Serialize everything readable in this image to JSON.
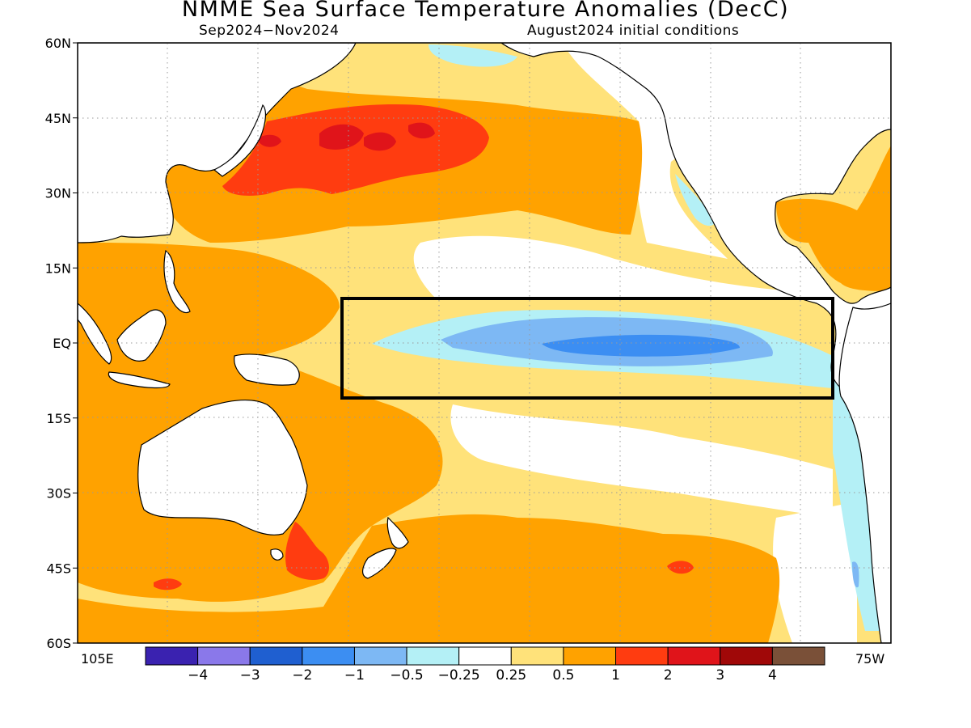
{
  "title": "NMME Sea Surface Temperature Anomalies (DecC)",
  "subtitle_left": "Sep2024−Nov2024",
  "subtitle_right": "August2024 initial conditions",
  "axes": {
    "lat_labels": [
      "60N",
      "45N",
      "30N",
      "15N",
      "EQ",
      "15S",
      "30S",
      "45S",
      "60S"
    ],
    "lat_values": [
      60,
      45,
      30,
      15,
      0,
      -15,
      -30,
      -45,
      -60
    ],
    "lon_left": "105E",
    "lon_right": "75W",
    "lon_range": [
      105,
      285
    ],
    "lat_range": [
      -60,
      60
    ],
    "grid": "dotted"
  },
  "colors": {
    "land": "#ffffff",
    "ocean_neutral": "#ffffff",
    "coastline": "#000000"
  },
  "colorbar": {
    "colors": [
      "#3a22b0",
      "#8a78ea",
      "#1f5fd0",
      "#3c8ef2",
      "#7db8f4",
      "#b4f0f6",
      "#ffffff",
      "#ffe27a",
      "#ffa200",
      "#ff3c10",
      "#e0141a",
      "#a00808",
      "#7a5038"
    ],
    "tick_labels": [
      "−4",
      "−3",
      "−2",
      "−1",
      "−0.5",
      "−0.25",
      "0.25",
      "0.5",
      "1",
      "2",
      "3",
      "4"
    ]
  },
  "nino_box": {
    "lon_range": [
      160,
      270
    ],
    "lat_range": [
      -11,
      9
    ]
  },
  "regions": [
    {
      "name": "south-pacific-warm",
      "color": "#ffa200"
    },
    {
      "name": "western-pacific-warm",
      "color": "#ffa200"
    },
    {
      "name": "north-pacific-warm",
      "color": "#ffa200"
    },
    {
      "name": "north-pacific-hot",
      "color": "#ff3c10"
    },
    {
      "name": "equatorial-cool",
      "color": "#b4f0f6"
    },
    {
      "name": "equatorial-cold",
      "color": "#7db8f4"
    },
    {
      "name": "equatorial-core",
      "color": "#3c8ef2"
    }
  ]
}
